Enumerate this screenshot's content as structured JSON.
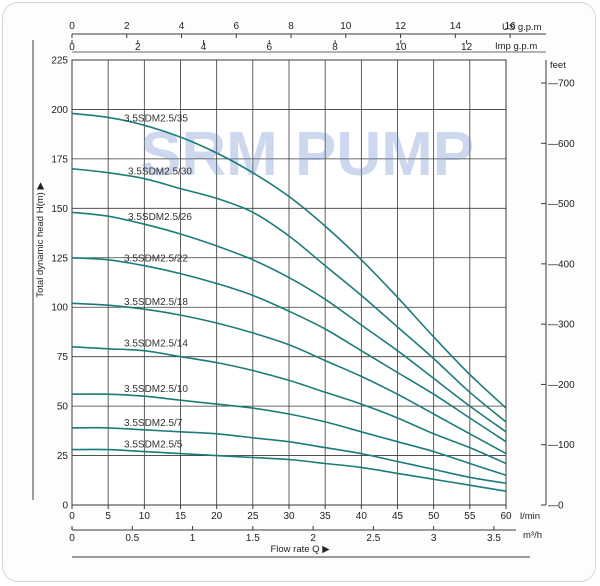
{
  "watermark": "SRM PUMP",
  "colors": {
    "curve": "#1b7c7a",
    "grid": "#3a3a3a",
    "frame": "#d4d7da"
  },
  "chart_data": {
    "type": "line",
    "ylabel": "Total dynamic head H(m) ▶",
    "xlabel": "Flow  rate Q ▶",
    "x_unit": "l/min",
    "x": [
      0,
      5,
      10,
      15,
      20,
      25,
      30,
      35,
      40,
      45,
      50,
      55,
      60
    ],
    "xlim": [
      0,
      60
    ],
    "ylim": [
      0,
      225
    ],
    "y_ticks": [
      0,
      25,
      50,
      75,
      100,
      125,
      150,
      175,
      200,
      225
    ],
    "secondary_y": {
      "unit": "feet",
      "ticks": [
        0,
        100,
        200,
        300,
        400,
        500,
        600,
        700
      ],
      "factor": 3.2808
    },
    "bottom_axis_m3h": {
      "unit": "m³/h",
      "ticks": [
        0,
        0.5,
        1,
        1.5,
        2,
        2.5,
        3,
        3.5
      ]
    },
    "top_axis_usgpm": {
      "unit": "US g.p.m",
      "ticks": [
        0,
        2,
        4,
        6,
        8,
        10,
        12,
        14,
        16
      ]
    },
    "top_axis_impgpm": {
      "unit": "Imp g.p.m",
      "ticks": [
        0,
        2,
        4,
        6,
        8,
        10,
        12
      ]
    },
    "series": [
      {
        "name": "3.5SDM2.5/35",
        "values": [
          198,
          196,
          192,
          186,
          178,
          168,
          156,
          141,
          124,
          105,
          85,
          66,
          49
        ]
      },
      {
        "name": "3.5SDM2.5/30",
        "values": [
          170,
          168,
          165,
          160,
          155,
          148,
          136,
          121,
          106,
          90,
          74,
          57,
          42
        ]
      },
      {
        "name": "3.5SDM2.5/26",
        "values": [
          148,
          146,
          142,
          137,
          131,
          124,
          115,
          104,
          91,
          78,
          64,
          50,
          37
        ]
      },
      {
        "name": "3.5SDM2.5/22",
        "values": [
          125,
          124,
          121,
          117,
          112,
          106,
          98,
          89,
          78,
          67,
          56,
          44,
          32
        ]
      },
      {
        "name": "3.5SDM2.5/18",
        "values": [
          102,
          101,
          99,
          96,
          92,
          87,
          81,
          73,
          65,
          56,
          46,
          36,
          26
        ]
      },
      {
        "name": "3.5SDM2.5/14",
        "values": [
          80,
          79,
          78,
          75,
          72,
          68,
          63,
          57,
          51,
          44,
          36,
          29,
          21
        ]
      },
      {
        "name": "3.5SDM2.5/10",
        "values": [
          56,
          56,
          55,
          53,
          51,
          49,
          46,
          42,
          37,
          32,
          27,
          21,
          15
        ]
      },
      {
        "name": "3.5SDM2.5/7",
        "values": [
          39,
          39,
          38,
          37,
          36,
          34,
          32,
          29,
          26,
          22,
          18,
          14,
          11
        ]
      },
      {
        "name": "3.5SDM2.5/5",
        "values": [
          28,
          28,
          27,
          26,
          25,
          24,
          23,
          21,
          19,
          16,
          13,
          10,
          7
        ]
      }
    ]
  }
}
